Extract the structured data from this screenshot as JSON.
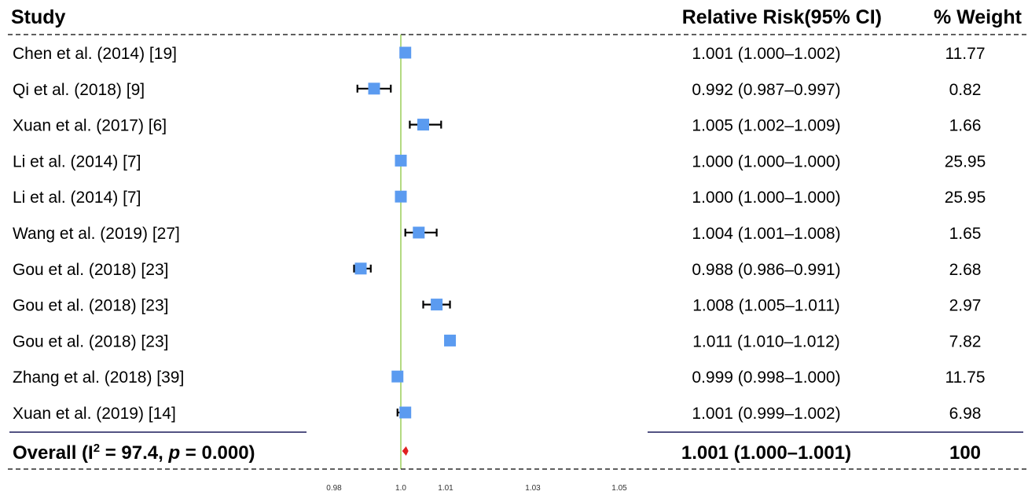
{
  "chart_data": {
    "type": "forest",
    "headers": {
      "study": "Study",
      "effect": "Relative Risk(95% CI)",
      "weight": "% Weight"
    },
    "x_axis": {
      "ticks": [
        0.98,
        1.0,
        1.01,
        1.03,
        1.05
      ],
      "tick_labels": [
        "0.98",
        "1.0",
        "1.01",
        "1.03",
        "1.05"
      ],
      "range": [
        0.98,
        1.05
      ],
      "reference_line": 1.0
    },
    "colors": {
      "marker": "#5b9bf0",
      "reference_line": "#8cc63f",
      "overall_marker": "#e02020",
      "ci": "#000000"
    },
    "studies": [
      {
        "label": "Chen et al. (2014) [19]",
        "rr": 1.001,
        "lower": 1.0,
        "upper": 1.002,
        "ci_text": "1.001 (1.000–1.002)",
        "weight": "11.77"
      },
      {
        "label": "Qi et al. (2018) [9]",
        "rr": 0.992,
        "lower": 0.987,
        "upper": 0.997,
        "ci_text": "0.992 (0.987–0.997)",
        "weight": "0.82"
      },
      {
        "label": "Xuan et al. (2017) [6]",
        "rr": 1.005,
        "lower": 1.002,
        "upper": 1.009,
        "ci_text": "1.005 (1.002–1.009)",
        "weight": "1.66"
      },
      {
        "label": "Li et al. (2014) [7]",
        "rr": 1.0,
        "lower": 1.0,
        "upper": 1.0,
        "ci_text": "1.000 (1.000–1.000)",
        "weight": "25.95"
      },
      {
        "label": "Li et al. (2014) [7]",
        "rr": 1.0,
        "lower": 1.0,
        "upper": 1.0,
        "ci_text": "1.000 (1.000–1.000)",
        "weight": "25.95"
      },
      {
        "label": "Wang et al. (2019) [27]",
        "rr": 1.004,
        "lower": 1.001,
        "upper": 1.008,
        "ci_text": "1.004 (1.001–1.008)",
        "weight": "1.65"
      },
      {
        "label": "Gou et al. (2018) [23]",
        "rr": 0.988,
        "lower": 0.986,
        "upper": 0.991,
        "ci_text": "0.988 (0.986–0.991)",
        "weight": "2.68"
      },
      {
        "label": "Gou et al. (2018) [23]",
        "rr": 1.008,
        "lower": 1.005,
        "upper": 1.011,
        "ci_text": "1.008 (1.005–1.011)",
        "weight": "2.97"
      },
      {
        "label": "Gou et al. (2018) [23]",
        "rr": 1.011,
        "lower": 1.01,
        "upper": 1.012,
        "ci_text": "1.011 (1.010–1.012)",
        "weight": "7.82"
      },
      {
        "label": "Zhang et al. (2018) [39]",
        "rr": 0.999,
        "lower": 0.998,
        "upper": 1.0,
        "ci_text": "0.999 (0.998–1.000)",
        "weight": "11.75"
      },
      {
        "label": "Xuan et al. (2019) [14]",
        "rr": 1.001,
        "lower": 0.999,
        "upper": 1.002,
        "ci_text": "1.001 (0.999–1.002)",
        "weight": "6.98"
      }
    ],
    "overall": {
      "label_prefix": "Overall (I",
      "label_sup": "2",
      "label_mid": " = 97.4, ",
      "label_p": "p",
      "label_suffix": " = 0.000)",
      "rr": 1.001,
      "lower": 1.0,
      "upper": 1.001,
      "ci_text": "1.001 (1.000–1.001)",
      "weight": "100"
    }
  }
}
